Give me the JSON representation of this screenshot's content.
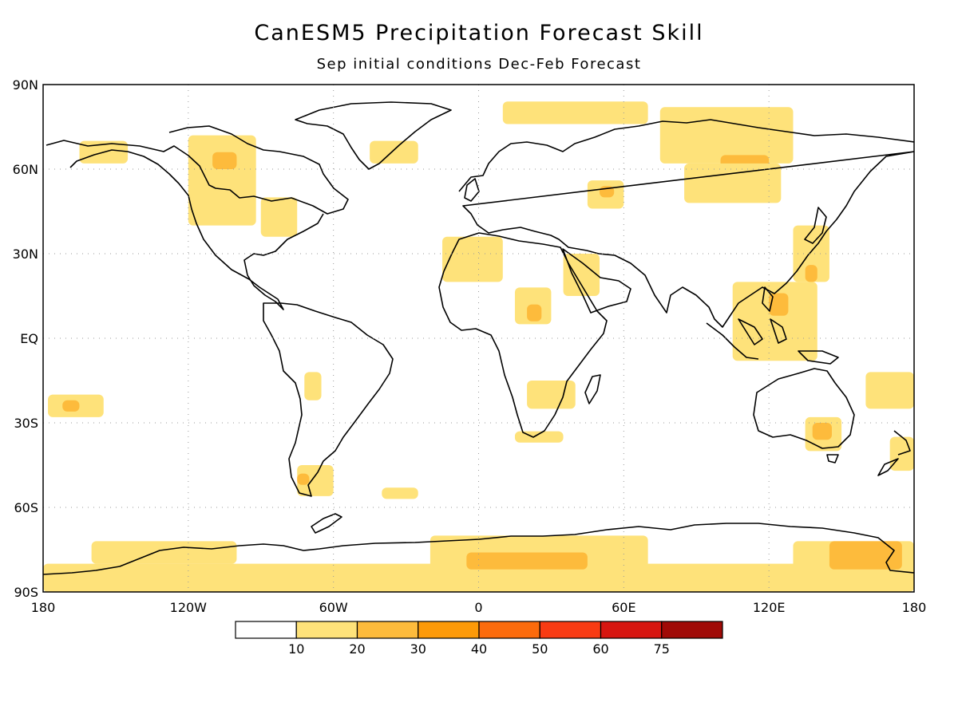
{
  "title": "CanESM5 Precipitation Forecast Skill",
  "subtitle": "Sep initial conditions   Dec-Feb Forecast",
  "lat_ticks": [
    {
      "label": "90N",
      "lat": 90
    },
    {
      "label": "60N",
      "lat": 60
    },
    {
      "label": "30N",
      "lat": 30
    },
    {
      "label": "EQ",
      "lat": 0
    },
    {
      "label": "30S",
      "lat": -30
    },
    {
      "label": "60S",
      "lat": -60
    },
    {
      "label": "90S",
      "lat": -90
    }
  ],
  "lon_ticks": [
    {
      "label": "180",
      "lon": -180
    },
    {
      "label": "120W",
      "lon": -120
    },
    {
      "label": "60W",
      "lon": -60
    },
    {
      "label": "0",
      "lon": 0
    },
    {
      "label": "60E",
      "lon": 60
    },
    {
      "label": "120E",
      "lon": 120
    },
    {
      "label": "180",
      "lon": 180
    }
  ],
  "colorbar": {
    "colors": [
      "#ffffff",
      "#fee27a",
      "#fdbb3c",
      "#fd9a08",
      "#fc6b0c",
      "#f93b13",
      "#d71610",
      "#a00a07"
    ],
    "labels": [
      "10",
      "20",
      "30",
      "40",
      "50",
      "60",
      "75"
    ]
  },
  "skill_regions": [
    {
      "level": 1,
      "lon_min": -180,
      "lon_max": 180,
      "lat_min": -90,
      "lat_max": -80
    },
    {
      "level": 1,
      "lon_min": -160,
      "lon_max": -100,
      "lat_min": -80,
      "lat_max": -72
    },
    {
      "level": 1,
      "lon_min": -20,
      "lon_max": 70,
      "lat_min": -82,
      "lat_max": -70
    },
    {
      "level": 2,
      "lon_min": -5,
      "lon_max": 45,
      "lat_min": -82,
      "lat_max": -76
    },
    {
      "level": 1,
      "lon_min": 130,
      "lon_max": 180,
      "lat_min": -88,
      "lat_max": -72
    },
    {
      "level": 2,
      "lon_min": 145,
      "lon_max": 175,
      "lat_min": -82,
      "lat_max": -72
    },
    {
      "level": 1,
      "lon_min": -120,
      "lon_max": -92,
      "lat_min": 40,
      "lat_max": 72
    },
    {
      "level": 2,
      "lon_min": -110,
      "lon_max": -100,
      "lat_min": 60,
      "lat_max": 66
    },
    {
      "level": 1,
      "lon_min": -90,
      "lon_max": -75,
      "lat_min": 36,
      "lat_max": 50
    },
    {
      "level": 1,
      "lon_min": -165,
      "lon_max": -145,
      "lat_min": 62,
      "lat_max": 70
    },
    {
      "level": 1,
      "lon_min": -45,
      "lon_max": -25,
      "lat_min": 62,
      "lat_max": 70
    },
    {
      "level": 1,
      "lon_min": 10,
      "lon_max": 70,
      "lat_min": 76,
      "lat_max": 84
    },
    {
      "level": 1,
      "lon_min": 75,
      "lon_max": 130,
      "lat_min": 62,
      "lat_max": 82
    },
    {
      "level": 2,
      "lon_min": 100,
      "lon_max": 120,
      "lat_min": 55,
      "lat_max": 65
    },
    {
      "level": 1,
      "lon_min": 85,
      "lon_max": 125,
      "lat_min": 48,
      "lat_max": 62
    },
    {
      "level": 1,
      "lon_min": 45,
      "lon_max": 60,
      "lat_min": 46,
      "lat_max": 56
    },
    {
      "level": 2,
      "lon_min": 50,
      "lon_max": 56,
      "lat_min": 50,
      "lat_max": 54
    },
    {
      "level": 1,
      "lon_min": -15,
      "lon_max": 10,
      "lat_min": 20,
      "lat_max": 36
    },
    {
      "level": 1,
      "lon_min": 15,
      "lon_max": 30,
      "lat_min": 5,
      "lat_max": 18
    },
    {
      "level": 2,
      "lon_min": 20,
      "lon_max": 26,
      "lat_min": 6,
      "lat_max": 12
    },
    {
      "level": 1,
      "lon_min": 35,
      "lon_max": 50,
      "lat_min": 15,
      "lat_max": 30
    },
    {
      "level": 1,
      "lon_min": 20,
      "lon_max": 40,
      "lat_min": -25,
      "lat_max": -15
    },
    {
      "level": 1,
      "lon_min": 15,
      "lon_max": 35,
      "lat_min": -37,
      "lat_max": -33
    },
    {
      "level": 1,
      "lon_min": 105,
      "lon_max": 140,
      "lat_min": -8,
      "lat_max": 20
    },
    {
      "level": 2,
      "lon_min": 120,
      "lon_max": 128,
      "lat_min": 8,
      "lat_max": 16
    },
    {
      "level": 1,
      "lon_min": 130,
      "lon_max": 145,
      "lat_min": 20,
      "lat_max": 40
    },
    {
      "level": 2,
      "lon_min": 135,
      "lon_max": 140,
      "lat_min": 20,
      "lat_max": 26
    },
    {
      "level": 1,
      "lon_min": 135,
      "lon_max": 150,
      "lat_min": -40,
      "lat_max": -28
    },
    {
      "level": 2,
      "lon_min": 138,
      "lon_max": 146,
      "lat_min": -36,
      "lat_max": -30
    },
    {
      "level": 1,
      "lon_min": 160,
      "lon_max": 180,
      "lat_min": -25,
      "lat_max": -12
    },
    {
      "level": 1,
      "lon_min": -178,
      "lon_max": -155,
      "lat_min": -28,
      "lat_max": -20
    },
    {
      "level": 2,
      "lon_min": -172,
      "lon_max": -165,
      "lat_min": -26,
      "lat_max": -22
    },
    {
      "level": 1,
      "lon_min": -75,
      "lon_max": -60,
      "lat_min": -56,
      "lat_max": -45
    },
    {
      "level": 2,
      "lon_min": -75,
      "lon_max": -70,
      "lat_min": -52,
      "lat_max": -48
    },
    {
      "level": 1,
      "lon_min": -40,
      "lon_max": -25,
      "lat_min": -57,
      "lat_max": -53
    },
    {
      "level": 1,
      "lon_min": -72,
      "lon_max": -65,
      "lat_min": -22,
      "lat_max": -12
    },
    {
      "level": 1,
      "lon_min": 170,
      "lon_max": 180,
      "lat_min": -47,
      "lat_max": -35
    }
  ]
}
